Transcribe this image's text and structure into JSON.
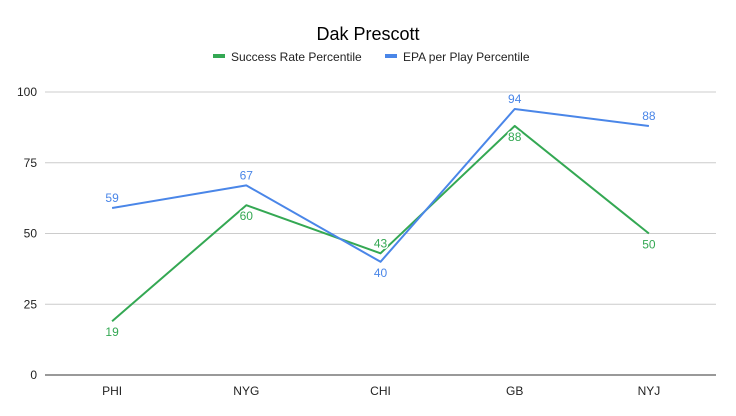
{
  "chart_data": {
    "type": "line",
    "title": "Dak Prescott",
    "categories": [
      "PHI",
      "NYG",
      "CHI",
      "GB",
      "NYJ"
    ],
    "series": [
      {
        "name": "Success Rate Percentile",
        "color": "#34a853",
        "values": [
          19,
          60,
          43,
          88,
          50
        ]
      },
      {
        "name": "EPA per Play Percentile",
        "color": "#4a86e8",
        "values": [
          59,
          67,
          40,
          94,
          88
        ]
      }
    ],
    "xlabel": "",
    "ylabel": "",
    "ylim": [
      0,
      100
    ],
    "yticks": [
      0,
      25,
      50,
      75,
      100
    ],
    "grid": true,
    "legend": "top-center"
  }
}
